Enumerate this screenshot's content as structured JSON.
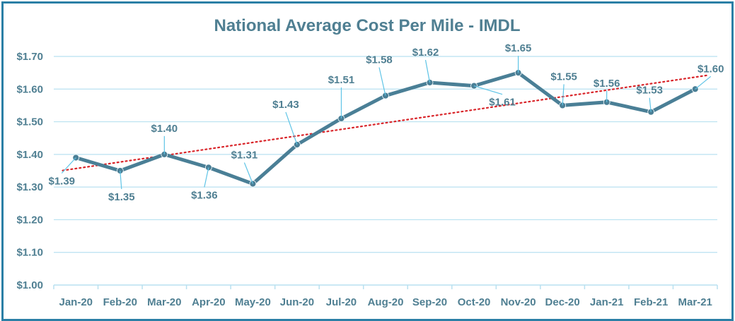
{
  "chart_data": {
    "type": "line",
    "title": "National Average Cost Per Mile - IMDL",
    "categories": [
      "Jan-20",
      "Feb-20",
      "Mar-20",
      "Apr-20",
      "May-20",
      "Jun-20",
      "Jul-20",
      "Aug-20",
      "Sep-20",
      "Oct-20",
      "Nov-20",
      "Dec-20",
      "Jan-21",
      "Feb-21",
      "Mar-21"
    ],
    "series": [
      {
        "name": "Cost Per Mile",
        "values": [
          1.39,
          1.35,
          1.4,
          1.36,
          1.31,
          1.43,
          1.51,
          1.58,
          1.62,
          1.61,
          1.65,
          1.55,
          1.56,
          1.53,
          1.6
        ],
        "labels": [
          "$1.39",
          "$1.35",
          "$1.40",
          "$1.36",
          "$1.31",
          "$1.43",
          "$1.51",
          "$1.58",
          "$1.62",
          "$1.61",
          "$1.65",
          "$1.55",
          "$1.56",
          "$1.53",
          "$1.60"
        ]
      }
    ],
    "trendline": {
      "type": "linear",
      "style": "dotted"
    },
    "yticks": [
      "$1.00",
      "$1.10",
      "$1.20",
      "$1.30",
      "$1.40",
      "$1.50",
      "$1.60",
      "$1.70"
    ],
    "ylim": [
      1.0,
      1.7
    ],
    "grid": true,
    "xlabel": "",
    "ylabel": "",
    "colors": {
      "line": "#4a7f96",
      "trend": "#d9252a",
      "grid": "#b8e1f0",
      "leader": "#5fc4e6",
      "text": "#4f7f92",
      "border": "#2b7fa6"
    }
  }
}
